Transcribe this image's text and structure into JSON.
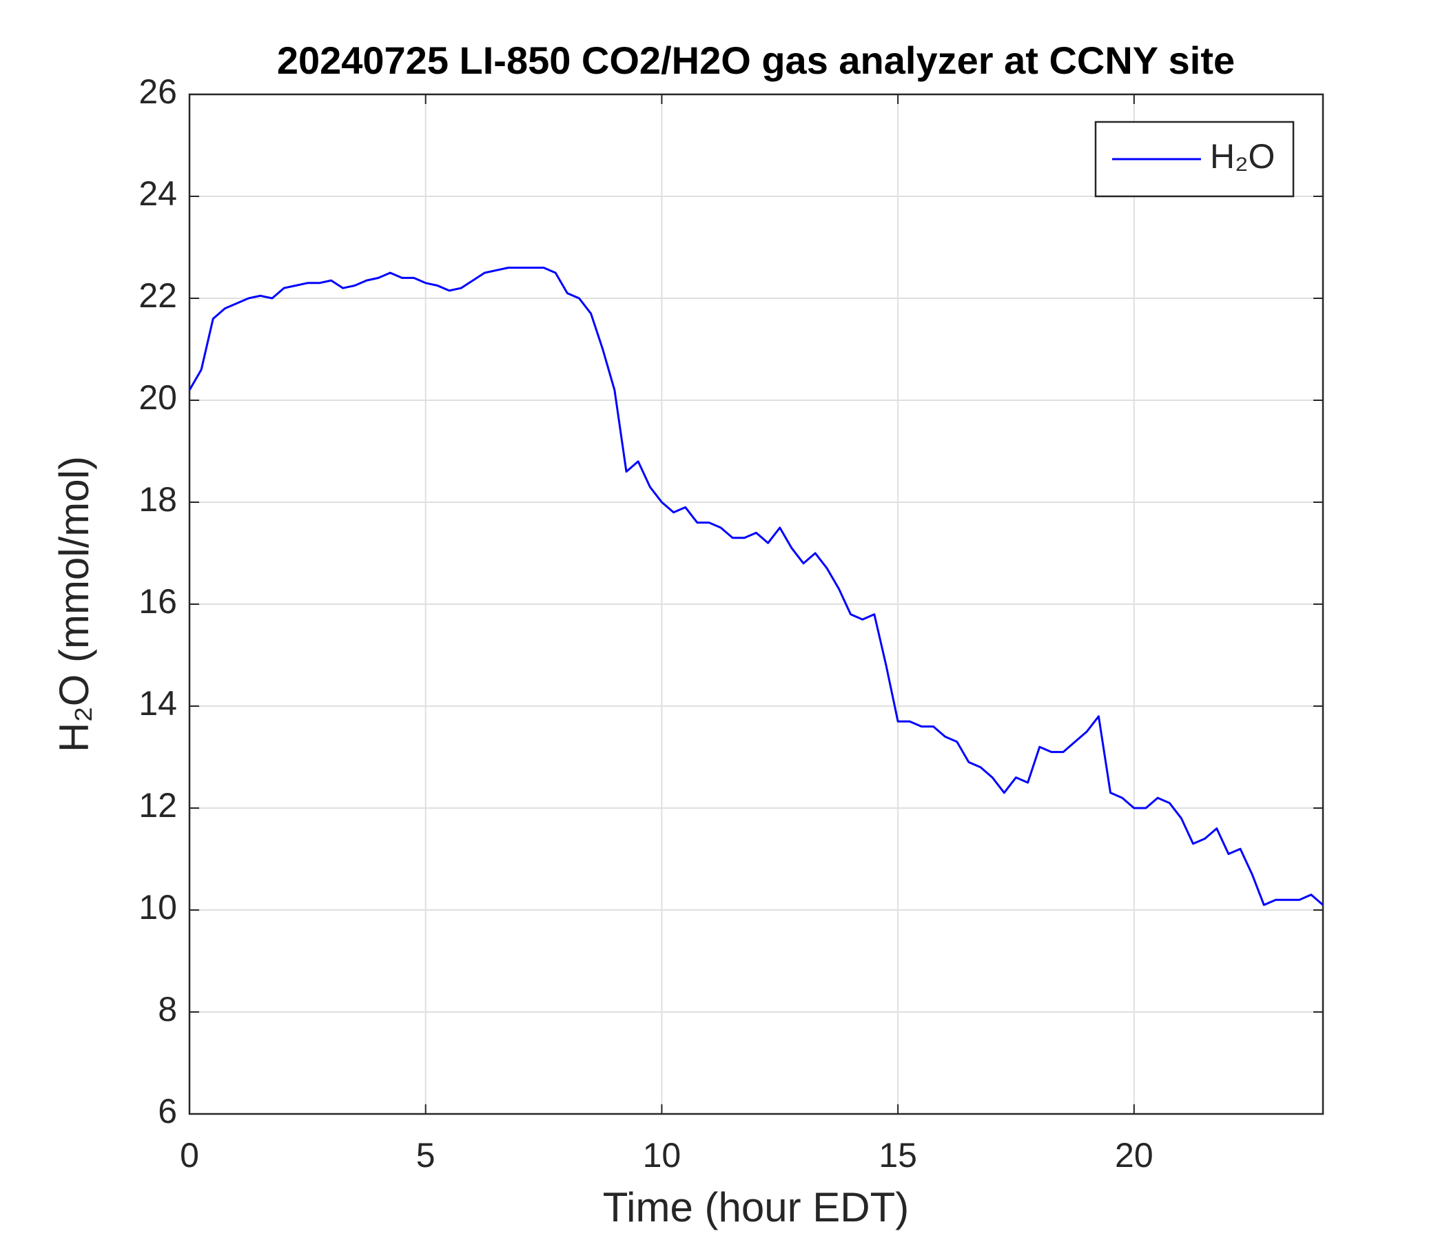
{
  "chart_data": {
    "type": "line",
    "title": "20240725 LI-850 CO2/H2O gas analyzer at CCNY site",
    "xlabel": "Time (hour EDT)",
    "ylabel": "H₂O (mmol/mol)",
    "x": [
      0,
      0.25,
      0.5,
      0.75,
      1,
      1.25,
      1.5,
      1.75,
      2,
      2.25,
      2.5,
      2.75,
      3,
      3.25,
      3.5,
      3.75,
      4,
      4.25,
      4.5,
      4.75,
      5,
      5.25,
      5.5,
      5.75,
      6,
      6.25,
      6.5,
      6.75,
      7,
      7.25,
      7.5,
      7.75,
      8,
      8.25,
      8.5,
      8.75,
      9,
      9.25,
      9.5,
      9.75,
      10,
      10.25,
      10.5,
      10.75,
      11,
      11.25,
      11.5,
      11.75,
      12,
      12.25,
      12.5,
      12.75,
      13,
      13.25,
      13.5,
      13.75,
      14,
      14.25,
      14.5,
      14.75,
      15,
      15.25,
      15.5,
      15.75,
      16,
      16.25,
      16.5,
      16.75,
      17,
      17.25,
      17.5,
      17.75,
      18,
      18.25,
      18.5,
      18.75,
      19,
      19.25,
      19.5,
      19.75,
      20,
      20.25,
      20.5,
      20.75,
      21,
      21.25,
      21.5,
      21.75,
      22,
      22.25,
      22.5,
      22.75,
      23,
      23.25,
      23.5,
      23.75,
      24
    ],
    "series": [
      {
        "name": "H₂O",
        "color": "#0000ff",
        "values": [
          20.2,
          20.6,
          21.6,
          21.8,
          21.9,
          22.0,
          22.05,
          22.0,
          22.2,
          22.25,
          22.3,
          22.3,
          22.35,
          22.2,
          22.25,
          22.35,
          22.4,
          22.5,
          22.4,
          22.4,
          22.3,
          22.25,
          22.15,
          22.2,
          22.35,
          22.5,
          22.55,
          22.6,
          22.6,
          22.6,
          22.6,
          22.5,
          22.1,
          22.0,
          21.7,
          21.0,
          20.2,
          18.6,
          18.8,
          18.3,
          18.0,
          17.8,
          17.9,
          17.6,
          17.6,
          17.5,
          17.3,
          17.3,
          17.4,
          17.2,
          17.5,
          17.1,
          16.8,
          17.0,
          16.7,
          16.3,
          15.8,
          15.7,
          15.8,
          14.8,
          13.7,
          13.7,
          13.6,
          13.6,
          13.4,
          13.3,
          12.9,
          12.8,
          12.6,
          12.3,
          12.6,
          12.5,
          13.2,
          13.1,
          13.1,
          13.3,
          13.5,
          13.8,
          12.3,
          12.2,
          12.0,
          12.0,
          12.2,
          12.1,
          11.8,
          11.3,
          11.4,
          11.6,
          11.1,
          11.2,
          10.7,
          10.1,
          10.2,
          10.2,
          10.2,
          10.3,
          10.1
        ]
      }
    ],
    "xlim": [
      0,
      24
    ],
    "ylim": [
      6,
      26
    ],
    "xticks": [
      0,
      5,
      10,
      15,
      20
    ],
    "yticks": [
      6,
      8,
      10,
      12,
      14,
      16,
      18,
      20,
      22,
      24,
      26
    ],
    "grid": true,
    "legend": "northeast"
  }
}
